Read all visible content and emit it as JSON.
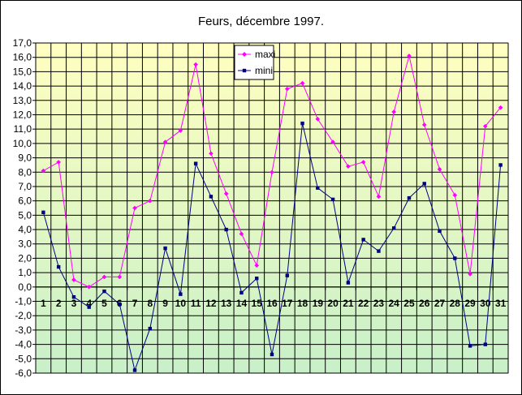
{
  "chart_data": {
    "type": "line",
    "title": "Feurs, décembre 1997.",
    "xlabel": "",
    "ylabel": "",
    "categories": [
      "1",
      "2",
      "3",
      "4",
      "5",
      "6",
      "7",
      "8",
      "9",
      "10",
      "11",
      "12",
      "13",
      "14",
      "15",
      "16",
      "17",
      "18",
      "19",
      "20",
      "21",
      "22",
      "23",
      "24",
      "25",
      "26",
      "27",
      "28",
      "29",
      "30",
      "31"
    ],
    "ylim": [
      -6,
      17
    ],
    "ytick_step": 1,
    "ytick_labels": [
      "-6,0",
      "-5,0",
      "-4,0",
      "-3,0",
      "-2,0",
      "-1,0",
      "0,0",
      "1,0",
      "2,0",
      "3,0",
      "4,0",
      "5,0",
      "6,0",
      "7,0",
      "8,0",
      "9,0",
      "10,0",
      "11,0",
      "12,0",
      "13,0",
      "14,0",
      "15,0",
      "16,0",
      "17,0"
    ],
    "grid": true,
    "legend_position": "top-right",
    "background_gradient": [
      "#ffffc0",
      "#c8f0c8"
    ],
    "series": [
      {
        "name": "maxi",
        "color": "#ff00ff",
        "marker": "diamond",
        "values": [
          8.1,
          8.7,
          0.5,
          0.0,
          0.7,
          0.7,
          5.5,
          6.0,
          10.1,
          10.9,
          15.5,
          9.3,
          6.5,
          3.7,
          1.5,
          8.0,
          13.8,
          14.2,
          11.7,
          10.1,
          8.4,
          8.7,
          6.3,
          12.2,
          16.1,
          11.3,
          8.2,
          6.4,
          0.9,
          11.2,
          12.5
        ]
      },
      {
        "name": "mini",
        "color": "#000080",
        "marker": "square",
        "values": [
          5.2,
          1.4,
          -0.7,
          -1.4,
          -0.3,
          -1.2,
          -5.8,
          -2.9,
          2.7,
          -0.5,
          8.6,
          6.3,
          4.0,
          -0.4,
          0.6,
          -4.7,
          0.8,
          11.4,
          6.9,
          6.1,
          0.3,
          3.3,
          2.5,
          4.1,
          6.2,
          7.2,
          3.9,
          2.0,
          -4.1,
          -4.0,
          8.5
        ]
      }
    ]
  }
}
